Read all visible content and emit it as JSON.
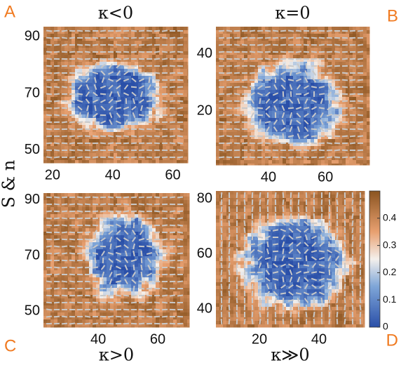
{
  "chart_data": [
    {
      "type": "heatmap",
      "label": "A",
      "title": "κ<0",
      "xlim": [
        17,
        65
      ],
      "xticks": [
        20,
        40,
        60
      ],
      "ylim": [
        45.5,
        93.5
      ],
      "yticks": [
        90,
        70,
        50
      ]
    },
    {
      "type": "heatmap",
      "label": "B",
      "title": "κ=0",
      "xlim": [
        21.5,
        75.5
      ],
      "xticks": [
        40,
        60
      ],
      "ylim": [
        1,
        49.6
      ],
      "yticks": [
        40,
        20
      ]
    },
    {
      "type": "heatmap",
      "label": "C",
      "xlabel": "κ>0",
      "xlim": [
        21.6,
        70.6
      ],
      "xticks": [
        40,
        60
      ],
      "ylim": [
        44.2,
        92.5
      ],
      "yticks": [
        90,
        70,
        50
      ]
    },
    {
      "type": "heatmap",
      "label": "D",
      "xlabel": "κ≫0",
      "xlim": [
        5.4,
        55.3
      ],
      "xticks": [
        20,
        40
      ],
      "ylim": [
        33.4,
        82.8
      ],
      "yticks": [
        80,
        60,
        40
      ],
      "zlim": [
        0,
        0.5
      ],
      "zticks": [
        0,
        0.1,
        0.2,
        0.3,
        0.4
      ]
    }
  ],
  "ylabel": "S & n"
}
